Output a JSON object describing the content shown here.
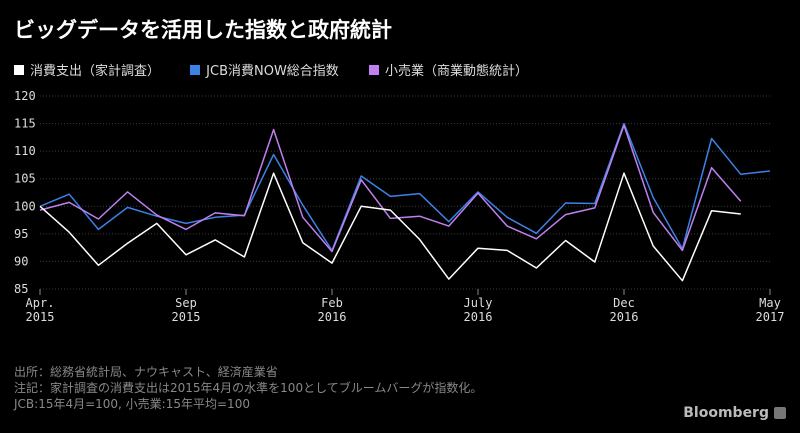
{
  "title": "ビッグデータを活用した指数と政府統計",
  "notes": [
    "出所：総務省統計局、ナウキャスト、経済産業省",
    "注記：家計調査の消費支出は2015年4月の水準を100としてブルームバーグが指数化。",
    "JCB:15年4月=100, 小売業:15年平均=100"
  ],
  "brand": "Bloomberg",
  "chart_data": {
    "type": "line",
    "title": "ビッグデータを活用した指数と政府統計",
    "xlabel": "",
    "ylabel": "",
    "ylim": [
      85,
      120
    ],
    "yticks": [
      85,
      90,
      95,
      100,
      105,
      110,
      115,
      120
    ],
    "grid": true,
    "legend_position": "top-left",
    "x": [
      "2015-04",
      "2015-05",
      "2015-06",
      "2015-07",
      "2015-08",
      "2015-09",
      "2015-10",
      "2015-11",
      "2015-12",
      "2016-01",
      "2016-02",
      "2016-03",
      "2016-04",
      "2016-05",
      "2016-06",
      "2016-07",
      "2016-08",
      "2016-09",
      "2016-10",
      "2016-11",
      "2016-12",
      "2017-01",
      "2017-02",
      "2017-03",
      "2017-04",
      "2017-05"
    ],
    "xticks": [
      {
        "index": 0,
        "line1": "Apr.",
        "line2": "2015"
      },
      {
        "index": 5,
        "line1": "Sep",
        "line2": "2015"
      },
      {
        "index": 10,
        "line1": "Feb",
        "line2": "2016"
      },
      {
        "index": 15,
        "line1": "July",
        "line2": "2016"
      },
      {
        "index": 20,
        "line1": "Dec",
        "line2": "2016"
      },
      {
        "index": 25,
        "line1": "May",
        "line2": "2017"
      }
    ],
    "series": [
      {
        "name": "消費支出（家計調査）",
        "color": "#ffffff",
        "values": [
          100,
          95.3,
          89.3,
          93.3,
          96.9,
          91.2,
          93.9,
          90.8,
          106.0,
          93.4,
          89.7,
          100.0,
          99.3,
          94.0,
          86.8,
          92.4,
          92.0,
          88.8,
          93.8,
          89.9,
          106.0,
          92.8,
          86.5,
          99.2,
          98.6,
          null
        ]
      },
      {
        "name": "JCB消費NOW総合指数",
        "color": "#3b82e6",
        "values": [
          100,
          102.2,
          95.8,
          99.8,
          98.2,
          96.9,
          98.0,
          98.4,
          109.4,
          100.2,
          92.0,
          105.5,
          101.8,
          102.3,
          97.2,
          102.6,
          98.0,
          95.1,
          100.6,
          100.5,
          115.0,
          101.6,
          92.3,
          112.3,
          105.8,
          106.4
        ]
      },
      {
        "name": "小売業（商業動態統計）",
        "color": "#c080f0",
        "values": [
          99.3,
          100.7,
          97.7,
          102.6,
          98.4,
          95.8,
          98.8,
          98.3,
          113.9,
          98.0,
          91.8,
          104.8,
          97.8,
          98.2,
          96.4,
          102.4,
          96.4,
          94.1,
          98.5,
          99.7,
          114.7,
          98.9,
          92.0,
          107.0,
          100.9,
          null
        ]
      }
    ]
  }
}
